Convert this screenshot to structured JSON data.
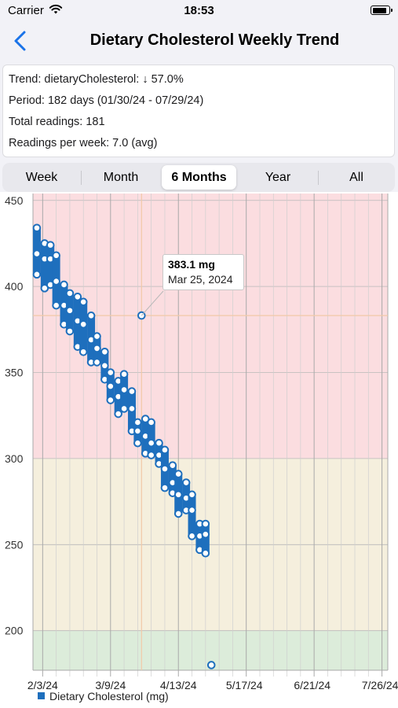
{
  "status_bar": {
    "carrier": "Carrier",
    "time": "18:53",
    "battery_level": 0.9
  },
  "nav": {
    "title": "Dietary Cholesterol Weekly Trend"
  },
  "info": {
    "trend": "Trend: dietaryCholesterol:  ↓ 57.0%",
    "period": "Period: 182 days (01/30/24 - 07/29/24)",
    "total": "Total readings: 181",
    "per_week": "Readings per week: 7.0 (avg)"
  },
  "segments": [
    "Week",
    "Month",
    "6 Months",
    "Year",
    "All"
  ],
  "selected_segment": "6 Months",
  "tooltip": {
    "value": "383.1 mg",
    "date": "Mar 25, 2024"
  },
  "colors": {
    "accent": "#1e6fbd",
    "zone_high": "#fbdde0",
    "zone_mid": "#f5efdd",
    "zone_low": "#dcecda",
    "tooltip_line": "#f2c9a8"
  },
  "chart_data": {
    "type": "range-bar",
    "x_axis_type": "date",
    "xlim": [
      "2024-01-29",
      "2024-07-30"
    ],
    "y_axis_ticks": [
      200,
      250,
      300,
      350,
      400,
      450
    ],
    "ylim": [
      177,
      454
    ],
    "xticks": [
      "2024-02-03",
      "2024-03-09",
      "2024-04-13",
      "2024-05-17",
      "2024-06-21",
      "2024-07-26"
    ],
    "xtick_labels": [
      "2/3/24",
      "3/9/24",
      "4/13/24",
      "5/17/24",
      "6/21/24",
      "7/26/24"
    ],
    "zones": [
      {
        "from": 300,
        "to": 454,
        "color_key": "zone_high"
      },
      {
        "from": 200,
        "to": 300,
        "color_key": "zone_mid"
      },
      {
        "from": 177,
        "to": 200,
        "color_key": "zone_low"
      }
    ],
    "legend": "Dietary Cholesterol (mg)",
    "highlight": {
      "date": "2024-03-25",
      "value": 383.1
    },
    "series": [
      {
        "date": "2024-01-31",
        "points": [
          434,
          419,
          407
        ]
      },
      {
        "date": "2024-02-04",
        "points": [
          425,
          416,
          399
        ]
      },
      {
        "date": "2024-02-07",
        "points": [
          424,
          416,
          401
        ]
      },
      {
        "date": "2024-02-10",
        "points": [
          418,
          403,
          389
        ]
      },
      {
        "date": "2024-02-14",
        "points": [
          401,
          389,
          378
        ]
      },
      {
        "date": "2024-02-17",
        "points": [
          396,
          386,
          374
        ]
      },
      {
        "date": "2024-02-21",
        "points": [
          394,
          380,
          365
        ]
      },
      {
        "date": "2024-02-24",
        "points": [
          391,
          378,
          362
        ]
      },
      {
        "date": "2024-02-28",
        "points": [
          383,
          369,
          356
        ]
      },
      {
        "date": "2024-03-02",
        "points": [
          371,
          364,
          356
        ]
      },
      {
        "date": "2024-03-06",
        "points": [
          362,
          354,
          346
        ]
      },
      {
        "date": "2024-03-09",
        "points": [
          350,
          342,
          334
        ]
      },
      {
        "date": "2024-03-13",
        "points": [
          345,
          336,
          326
        ]
      },
      {
        "date": "2024-03-16",
        "points": [
          349,
          340,
          329
        ]
      },
      {
        "date": "2024-03-20",
        "points": [
          339,
          329,
          316
        ]
      },
      {
        "date": "2024-03-23",
        "points": [
          321,
          316,
          309
        ]
      },
      {
        "date": "2024-03-25",
        "points": [
          383.1
        ]
      },
      {
        "date": "2024-03-27",
        "points": [
          323,
          313,
          303
        ]
      },
      {
        "date": "2024-03-30",
        "points": [
          321,
          309,
          302
        ]
      },
      {
        "date": "2024-04-03",
        "points": [
          309,
          302,
          297
        ]
      },
      {
        "date": "2024-04-06",
        "points": [
          305,
          294,
          283
        ]
      },
      {
        "date": "2024-04-10",
        "points": [
          296,
          286,
          280
        ]
      },
      {
        "date": "2024-04-13",
        "points": [
          291,
          279,
          268
        ]
      },
      {
        "date": "2024-04-17",
        "points": [
          286,
          277,
          270
        ]
      },
      {
        "date": "2024-04-20",
        "points": [
          279,
          270,
          255
        ]
      },
      {
        "date": "2024-04-24",
        "points": [
          262,
          255,
          247
        ]
      },
      {
        "date": "2024-04-27",
        "points": [
          262,
          256,
          245
        ]
      },
      {
        "date": "2024-04-30",
        "points": [
          180
        ]
      }
    ]
  }
}
